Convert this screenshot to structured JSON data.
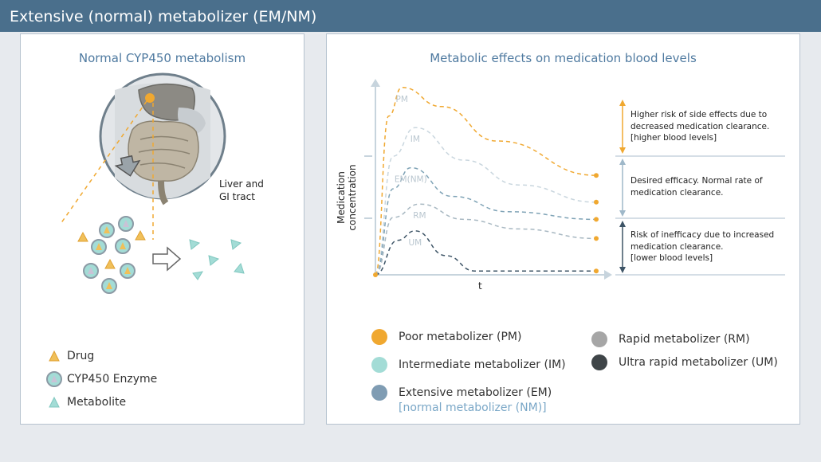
{
  "header": {
    "title": "Extensive (normal) metabolizer (EM/NM)"
  },
  "left_panel": {
    "title": "Normal CYP450 metabolism",
    "organ_label_line1": "Liver and",
    "organ_label_line2": "GI tract",
    "legend": [
      {
        "label": "Drug",
        "icon": "drug-triangle-icon"
      },
      {
        "label": "CYP450 Enzyme",
        "icon": "enzyme-circle-icon"
      },
      {
        "label": "Metabolite",
        "icon": "metabolite-triangle-icon"
      }
    ]
  },
  "right_panel": {
    "title": "Metabolic effects on medication blood levels",
    "ylabel": "Medication concentration",
    "xlabel": "t",
    "notes": {
      "high": [
        "Higher risk of side effects due to",
        "decreased medication clearance.",
        "[higher blood levels]"
      ],
      "normal": [
        "Desired efficacy. Normal rate of",
        "medication clearance."
      ],
      "low": [
        "Risk of inefficacy due to increased",
        "medication clearance.",
        "[lower blood levels]"
      ]
    },
    "legend": [
      {
        "label": "Poor metabolizer (PM)",
        "color": "#f0a830"
      },
      {
        "label": "Intermediate metabolizer (IM)",
        "color": "#a3dcd6"
      },
      {
        "label": "Extensive metabolizer (EM)",
        "sub": "[normal metabolizer (NM)]",
        "color": "#7f9cb3"
      },
      {
        "label": "Rapid metabolizer (RM)",
        "color": "#a6a6a6"
      },
      {
        "label": "Ultra rapid metabolizer (UM)",
        "color": "#3f4548"
      }
    ]
  },
  "chart_data": {
    "type": "line",
    "xlabel": "t",
    "ylabel": "Medication concentration",
    "series": [
      {
        "name": "PM",
        "color": "#f0a830",
        "points": [
          [
            0,
            0
          ],
          [
            0.06,
            0.83
          ],
          [
            0.12,
            0.98
          ],
          [
            0.3,
            0.88
          ],
          [
            0.55,
            0.7
          ],
          [
            1,
            0.52
          ]
        ]
      },
      {
        "name": "IM",
        "color": "#c9d6de",
        "points": [
          [
            0,
            0
          ],
          [
            0.08,
            0.62
          ],
          [
            0.18,
            0.77
          ],
          [
            0.4,
            0.6
          ],
          [
            0.65,
            0.47
          ],
          [
            1,
            0.38
          ]
        ]
      },
      {
        "name": "EM(NM)",
        "color": "#7fa3b6",
        "points": [
          [
            0,
            0
          ],
          [
            0.08,
            0.45
          ],
          [
            0.16,
            0.56
          ],
          [
            0.35,
            0.41
          ],
          [
            0.6,
            0.33
          ],
          [
            1,
            0.29
          ]
        ]
      },
      {
        "name": "RM",
        "color": "#a8b8c2",
        "points": [
          [
            0,
            0
          ],
          [
            0.08,
            0.3
          ],
          [
            0.2,
            0.37
          ],
          [
            0.4,
            0.29
          ],
          [
            0.65,
            0.24
          ],
          [
            1,
            0.19
          ]
        ]
      },
      {
        "name": "UM",
        "color": "#3d5466",
        "points": [
          [
            0,
            0
          ],
          [
            0.1,
            0.18
          ],
          [
            0.18,
            0.23
          ],
          [
            0.32,
            0.1
          ],
          [
            0.45,
            0.02
          ],
          [
            1,
            0.02
          ]
        ]
      }
    ]
  }
}
